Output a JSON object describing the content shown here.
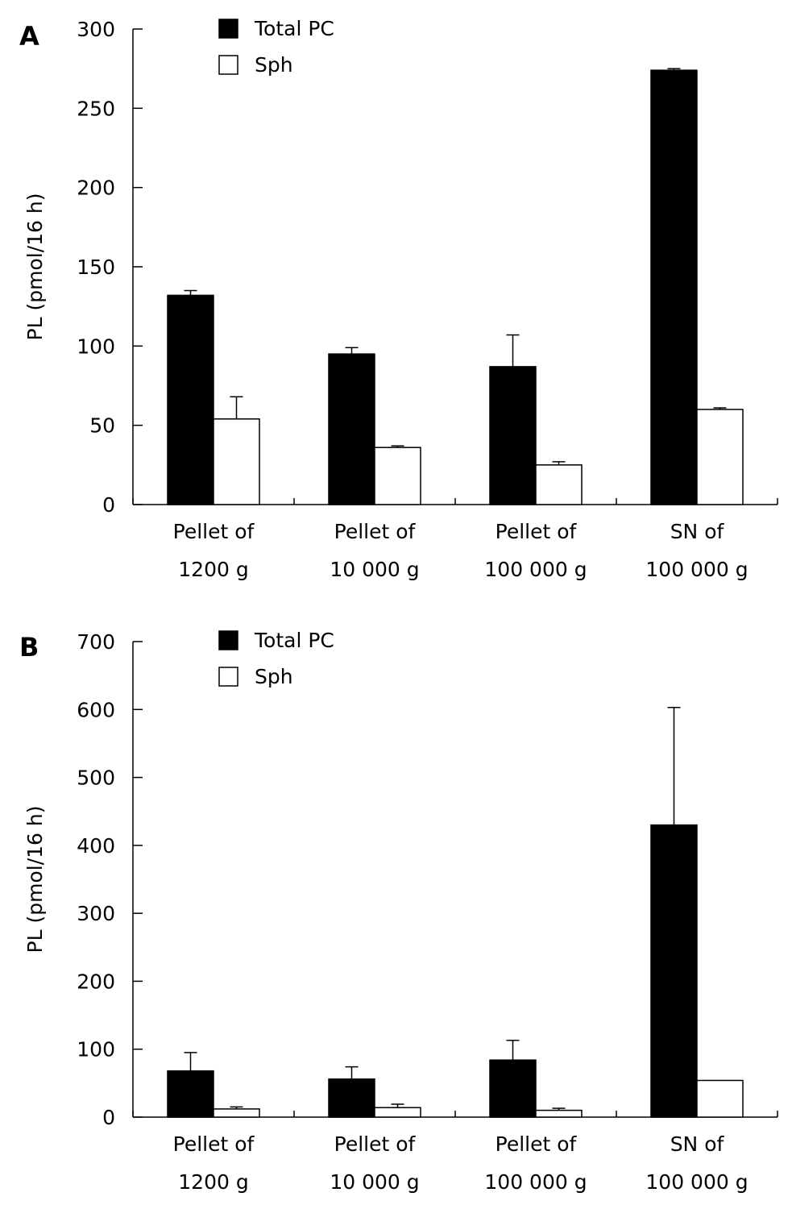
{
  "chart_data": [
    {
      "type": "bar",
      "panel_label": "A",
      "ylabel": "PL (pmol/16 h)",
      "ylim": [
        0,
        300
      ],
      "yticks": [
        0,
        50,
        100,
        150,
        200,
        250,
        300
      ],
      "categories": [
        {
          "line1": "Pellet of",
          "line2": "1200 g"
        },
        {
          "line1": "Pellet of",
          "line2": "10 000 g"
        },
        {
          "line1": "Pellet of",
          "line2": "100 000 g"
        },
        {
          "line1": "SN of",
          "line2": "100 000 g"
        }
      ],
      "series": [
        {
          "name": "Total PC",
          "color": "#000000",
          "values": [
            132,
            95,
            87,
            274
          ],
          "errors": [
            3,
            4,
            20,
            1
          ]
        },
        {
          "name": "Sph",
          "color": "#ffffff",
          "values": [
            54,
            36,
            25,
            60
          ],
          "errors": [
            14,
            1,
            2,
            1
          ]
        }
      ],
      "legend_position": "top-left"
    },
    {
      "type": "bar",
      "panel_label": "B",
      "ylabel": "PL (pmol/16 h)",
      "ylim": [
        0,
        700
      ],
      "yticks": [
        0,
        100,
        200,
        300,
        400,
        500,
        600,
        700
      ],
      "categories": [
        {
          "line1": "Pellet of",
          "line2": "1200 g"
        },
        {
          "line1": "Pellet of",
          "line2": "10 000 g"
        },
        {
          "line1": "Pellet of",
          "line2": "100 000 g"
        },
        {
          "line1": "SN of",
          "line2": "100 000 g"
        }
      ],
      "series": [
        {
          "name": "Total PC",
          "color": "#000000",
          "values": [
            68,
            56,
            84,
            430
          ],
          "errors": [
            27,
            18,
            29,
            173
          ]
        },
        {
          "name": "Sph",
          "color": "#ffffff",
          "values": [
            12,
            14,
            10,
            54
          ],
          "errors": [
            3,
            5,
            3,
            0
          ]
        }
      ],
      "legend_position": "top-left"
    }
  ]
}
